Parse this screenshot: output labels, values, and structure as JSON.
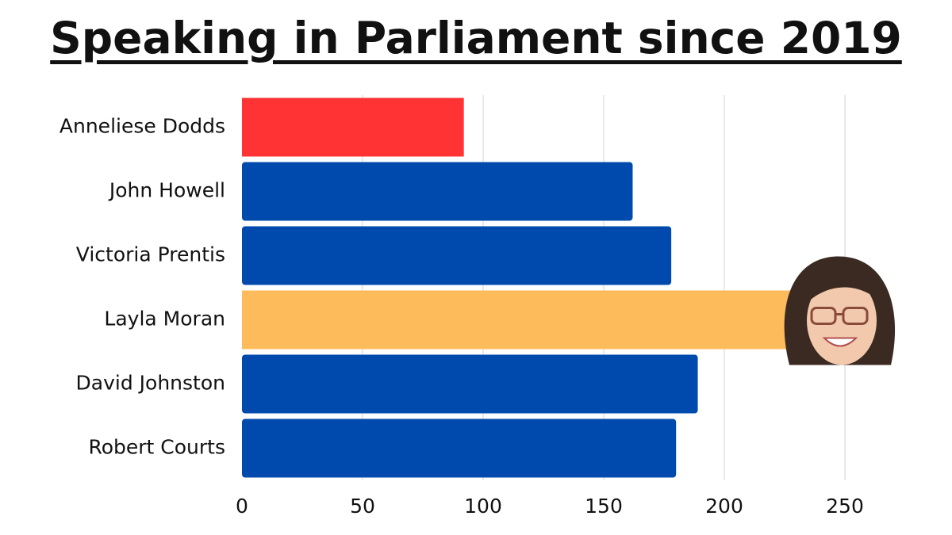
{
  "title": "Speaking in Parliament since 2019",
  "chart_data": {
    "type": "bar",
    "orientation": "horizontal",
    "title": "Speaking in Parliament since 2019",
    "categories": [
      "Anneliese Dodds",
      "John Howell",
      "Victoria Prentis",
      "Layla Moran",
      "David Johnston",
      "Robert Courts"
    ],
    "values": [
      92,
      162,
      178,
      235,
      189,
      180
    ],
    "colors": [
      "#ff3333",
      "#004aad",
      "#004aad",
      "#fdbb5c",
      "#004aad",
      "#004aad"
    ],
    "xlim": [
      0,
      270
    ],
    "xticks": [
      0,
      50,
      100,
      150,
      200,
      250
    ],
    "xlabel": "",
    "ylabel": "",
    "grid": true,
    "legend": "none",
    "annotations": [
      {
        "type": "photo",
        "category": "Layla Moran",
        "position": "end-of-bar",
        "icon": "portrait-photo"
      }
    ]
  }
}
